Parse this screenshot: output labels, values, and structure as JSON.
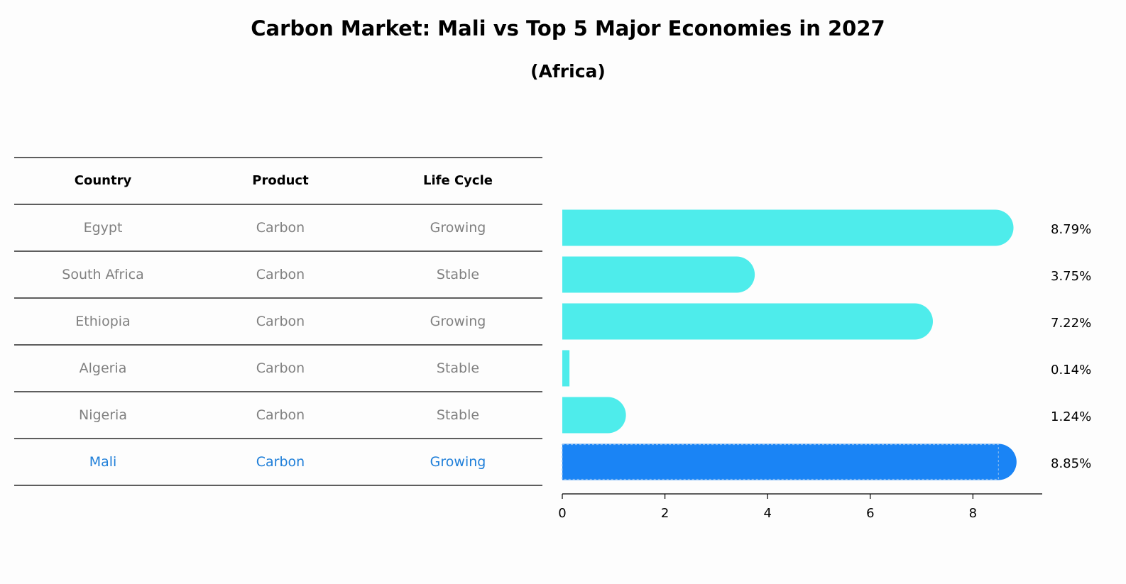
{
  "title": "Carbon Market: Mali vs Top 5 Major Economies in 2027",
  "subtitle": "(Africa)",
  "table": {
    "headers": [
      "Country",
      "Product",
      "Life Cycle"
    ],
    "rows": [
      {
        "country": "Egypt",
        "product": "Carbon",
        "life_cycle": "Growing"
      },
      {
        "country": "South Africa",
        "product": "Carbon",
        "life_cycle": "Stable"
      },
      {
        "country": "Ethiopia",
        "product": "Carbon",
        "life_cycle": "Growing"
      },
      {
        "country": "Algeria",
        "product": "Carbon",
        "life_cycle": "Stable"
      },
      {
        "country": "Nigeria",
        "product": "Carbon",
        "life_cycle": "Stable"
      },
      {
        "country": "Mali",
        "product": "Carbon",
        "life_cycle": "Growing"
      }
    ],
    "highlight_index": 5
  },
  "colors": {
    "bar": "#4eeceb",
    "highlight_bar": "#1a84f5",
    "highlight_text": "#1f7fd9",
    "normal_text": "#808080"
  },
  "chart_data": {
    "type": "bar",
    "orientation": "horizontal",
    "categories": [
      "Egypt",
      "South Africa",
      "Ethiopia",
      "Algeria",
      "Nigeria",
      "Mali"
    ],
    "values": [
      8.79,
      3.75,
      7.22,
      0.14,
      1.24,
      8.85
    ],
    "value_labels": [
      "8.79%",
      "3.75%",
      "7.22%",
      "0.14%",
      "1.24%",
      "8.85%"
    ],
    "x_ticks": [
      "0",
      "2",
      "4",
      "6",
      "8"
    ],
    "xlim": [
      0,
      9.35
    ],
    "xlabel": "",
    "ylabel": "",
    "grid": false,
    "legend": "none"
  }
}
